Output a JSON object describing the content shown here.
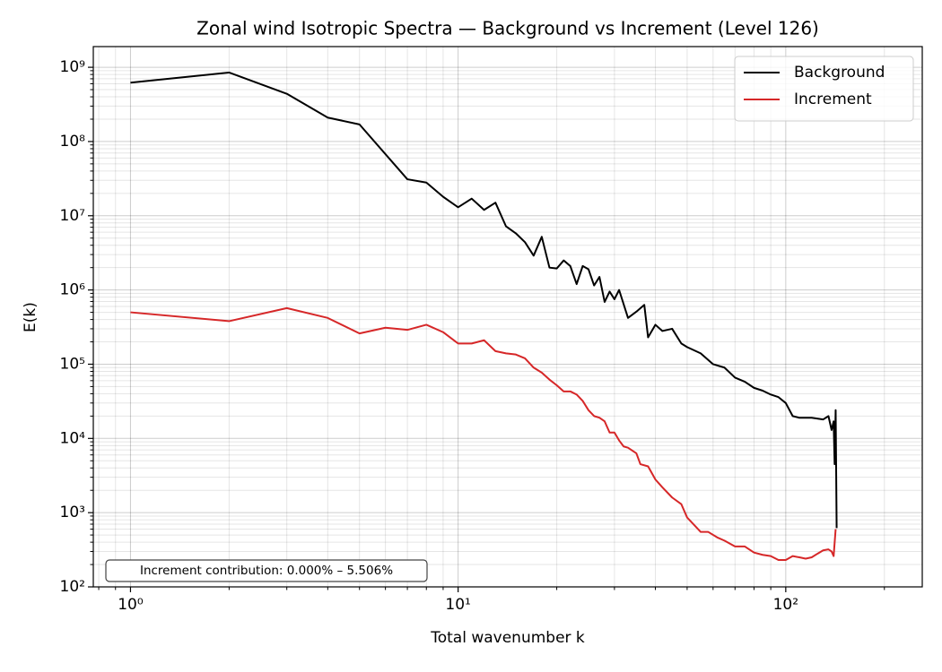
{
  "chart_data": {
    "type": "line",
    "title": "Zonal wind Isotropic Spectra — Background vs Increment (Level 126)",
    "xlabel": "Total wavenumber k",
    "ylabel": "E(k)",
    "log_x": true,
    "log_y": true,
    "grid": true,
    "legend": "upper right",
    "annotation": "Increment contribution: 0.000% – 5.506%",
    "xlim": [
      0.77,
      261
    ],
    "ylim": [
      100,
      1900000000
    ],
    "xticks": [
      {
        "value": 1,
        "label": "10⁰"
      },
      {
        "value": 10,
        "label": "10¹"
      },
      {
        "value": 100,
        "label": "10²"
      }
    ],
    "xminorticks": [
      0.8,
      0.9,
      2,
      3,
      4,
      5,
      6,
      7,
      8,
      9,
      20,
      30,
      40,
      50,
      60,
      70,
      80,
      90,
      200
    ],
    "yticks": [
      {
        "value": 100,
        "label": "10²"
      },
      {
        "value": 1000,
        "label": "10³"
      },
      {
        "value": 10000,
        "label": "10⁴"
      },
      {
        "value": 100000,
        "label": "10⁵"
      },
      {
        "value": 1000000,
        "label": "10⁶"
      },
      {
        "value": 10000000,
        "label": "10⁷"
      },
      {
        "value": 100000000,
        "label": "10⁸"
      },
      {
        "value": 1000000000,
        "label": "10⁹"
      }
    ],
    "yminorticks": [
      200,
      300,
      400,
      500,
      600,
      700,
      800,
      900,
      2000,
      3000,
      4000,
      5000,
      6000,
      7000,
      8000,
      9000,
      20000,
      30000,
      40000,
      50000,
      60000,
      70000,
      80000,
      90000,
      200000,
      300000,
      400000,
      500000,
      600000,
      700000,
      800000,
      900000,
      2000000,
      3000000,
      4000000,
      5000000,
      6000000,
      7000000,
      8000000,
      9000000,
      20000000,
      30000000,
      40000000,
      50000000,
      60000000,
      70000000,
      80000000,
      90000000,
      200000000,
      300000000,
      400000000,
      500000000,
      600000000,
      700000000,
      800000000,
      900000000
    ],
    "series": [
      {
        "name": "Background",
        "color": "#000000",
        "x": [
          1,
          2,
          3,
          4,
          5,
          7,
          8,
          9,
          10,
          11,
          12,
          13,
          14,
          15,
          16,
          17,
          18,
          19,
          20,
          21,
          22,
          23,
          24,
          25,
          26,
          27,
          28,
          29,
          30,
          31,
          33,
          35,
          37,
          38,
          40,
          42,
          45,
          48,
          50,
          55,
          60,
          65,
          70,
          75,
          80,
          85,
          90,
          95,
          100,
          105,
          110,
          120,
          130,
          135,
          138,
          140,
          141,
          142,
          143
        ],
        "values": [
          620000000,
          850000000,
          440000000,
          210000000,
          170000000,
          31000000,
          28000000,
          18000000,
          13000000,
          17000000,
          12000000,
          15000000,
          7200000,
          5800000,
          4400000,
          2900000,
          5200000,
          2000000,
          1950000,
          2500000,
          2100000,
          1200000,
          2100000,
          1900000,
          1150000,
          1500000,
          690000,
          950000,
          750000,
          1000000,
          420000,
          510000,
          630000,
          230000,
          340000,
          280000,
          300000,
          190000,
          170000,
          140000,
          100000,
          90000,
          66000,
          58000,
          48000,
          44000,
          39000,
          36000,
          30000,
          20000,
          19000,
          19000,
          18000,
          20000,
          13000,
          17000,
          4500,
          24000,
          620
        ]
      },
      {
        "name": "Increment",
        "color": "#d62728",
        "x": [
          1,
          2,
          3,
          4,
          5,
          6,
          7,
          8,
          9,
          10,
          11,
          12,
          13,
          14,
          15,
          16,
          17,
          18,
          19,
          20,
          21,
          22,
          23,
          24,
          25,
          26,
          27,
          28,
          29,
          30,
          31,
          32,
          33,
          35,
          36,
          38,
          40,
          42,
          45,
          48,
          50,
          55,
          58,
          62,
          65,
          70,
          75,
          80,
          85,
          90,
          95,
          100,
          105,
          110,
          115,
          120,
          125,
          130,
          135,
          138,
          140,
          142
        ],
        "values": [
          500000,
          380000,
          570000,
          420000,
          260000,
          310000,
          290000,
          340000,
          270000,
          190000,
          190000,
          210000,
          150000,
          140000,
          135000,
          120000,
          90000,
          77000,
          62000,
          52000,
          43000,
          43000,
          39000,
          32000,
          24000,
          20000,
          19000,
          17000,
          12000,
          12000,
          9400,
          7800,
          7500,
          6300,
          4500,
          4200,
          2800,
          2200,
          1600,
          1300,
          860,
          550,
          550,
          460,
          420,
          350,
          350,
          290,
          270,
          260,
          230,
          230,
          260,
          250,
          240,
          250,
          280,
          310,
          320,
          300,
          260,
          600
        ]
      }
    ]
  }
}
